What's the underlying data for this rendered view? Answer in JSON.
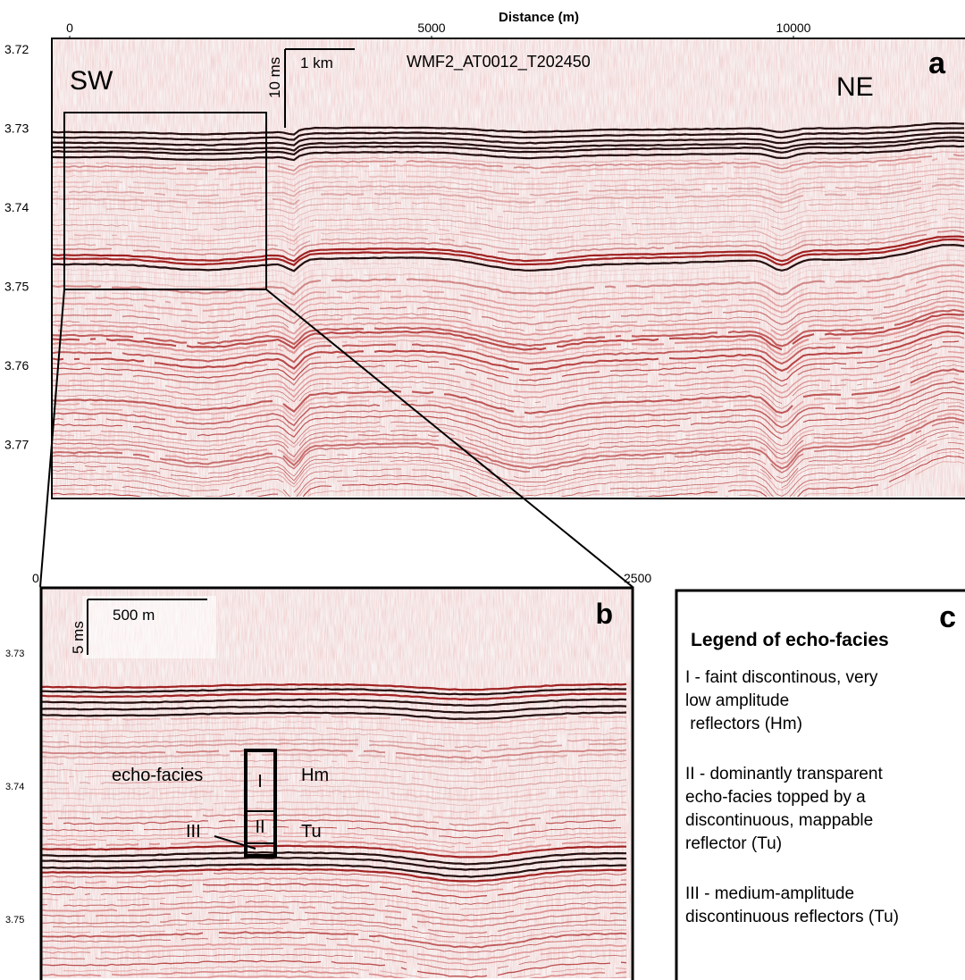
{
  "panel_a": {
    "label": "a",
    "profile": "WMF2_AT0012_T202450",
    "left_end": "SW",
    "right_end": "NE",
    "scale_distance": "1 km",
    "scale_time": "10 ms",
    "x_axis_title": "Distance (m)",
    "x_ticks": [
      0,
      5000,
      10000
    ],
    "y_ticks": [
      3.72,
      3.73,
      3.74,
      3.75,
      3.76,
      3.77
    ]
  },
  "panel_b": {
    "label": "b",
    "scale_distance": "500 m",
    "scale_time": "5 ms",
    "x_ticks": [
      0,
      2500
    ],
    "y_ticks": [
      3.73,
      3.74,
      3.75
    ],
    "facies_caption": "echo-facies",
    "facies": [
      "I",
      "II",
      "III"
    ],
    "units": [
      "Hm",
      "Tu"
    ]
  },
  "panel_c": {
    "label": "c",
    "title": "Legend of echo-facies",
    "entries": [
      [
        "I - faint discontinous, very",
        "low amplitude",
        " reflectors (Hm)"
      ],
      [
        "II - dominantly transparent",
        "echo-facies topped by a",
        "discontinuous, mappable",
        "reflector (Tu)"
      ],
      [
        "III - medium-amplitude",
        "discontinuous reflectors (Tu)"
      ]
    ]
  }
}
